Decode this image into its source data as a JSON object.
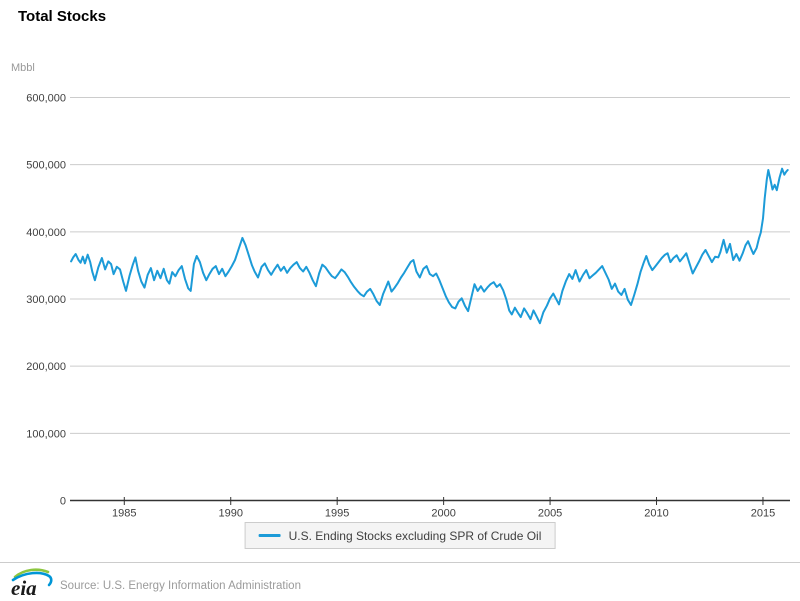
{
  "page": {
    "title": "Total Stocks"
  },
  "unit_label": "Mbbl",
  "legend": {
    "items": [
      {
        "label": "U.S. Ending Stocks excluding SPR of Crude Oil",
        "color": "#1c9bd8"
      }
    ]
  },
  "footer": {
    "logo_text": "eia",
    "source_text": "Source: U.S. Energy Information Administration"
  },
  "colors": {
    "line": "#1c9bd8",
    "gridline": "#cccccc",
    "axis": "#333333",
    "tick_label": "#404040",
    "unit_label": "#999999",
    "logo_green": "#8cc63e",
    "logo_blue": "#0096d6",
    "logo_text": "#1a1a1a"
  },
  "chart_data": {
    "type": "line",
    "title": "Total Stocks",
    "xlabel": "",
    "ylabel": "Mbbl",
    "xlim": [
      1982.45,
      2016.27
    ],
    "ylim": [
      0,
      600000
    ],
    "grid": "horizontal",
    "legend_position": "bottom-center",
    "xticks": [
      {
        "value": 1985,
        "label": "1985"
      },
      {
        "value": 1990,
        "label": "1990"
      },
      {
        "value": 1995,
        "label": "1995"
      },
      {
        "value": 2000,
        "label": "2000"
      },
      {
        "value": 2005,
        "label": "2005"
      },
      {
        "value": 2010,
        "label": "2010"
      },
      {
        "value": 2015,
        "label": "2015"
      }
    ],
    "yticks": [
      {
        "value": 0,
        "label": "0"
      },
      {
        "value": 100000,
        "label": "100,000"
      },
      {
        "value": 200000,
        "label": "200,000"
      },
      {
        "value": 300000,
        "label": "300,000"
      },
      {
        "value": 400000,
        "label": "400,000"
      },
      {
        "value": 500000,
        "label": "500,000"
      },
      {
        "value": 600000,
        "label": "600,000"
      }
    ],
    "series": [
      {
        "name": "U.S. Ending Stocks excluding SPR of Crude Oil",
        "color": "#1c9bd8",
        "points": [
          [
            1982.5,
            356000
          ],
          [
            1982.6,
            362000
          ],
          [
            1982.72,
            367000
          ],
          [
            1982.85,
            358000
          ],
          [
            1982.95,
            354000
          ],
          [
            1983.05,
            363000
          ],
          [
            1983.15,
            353000
          ],
          [
            1983.28,
            366000
          ],
          [
            1983.4,
            355000
          ],
          [
            1983.5,
            340000
          ],
          [
            1983.62,
            328000
          ],
          [
            1983.78,
            347000
          ],
          [
            1983.95,
            361000
          ],
          [
            1984.1,
            344000
          ],
          [
            1984.25,
            356000
          ],
          [
            1984.38,
            352000
          ],
          [
            1984.5,
            337000
          ],
          [
            1984.65,
            348000
          ],
          [
            1984.8,
            344000
          ],
          [
            1984.95,
            326000
          ],
          [
            1985.08,
            312000
          ],
          [
            1985.25,
            335000
          ],
          [
            1985.4,
            351000
          ],
          [
            1985.52,
            362000
          ],
          [
            1985.65,
            342000
          ],
          [
            1985.8,
            326000
          ],
          [
            1985.95,
            317000
          ],
          [
            1986.1,
            336000
          ],
          [
            1986.25,
            346000
          ],
          [
            1986.4,
            328000
          ],
          [
            1986.55,
            342000
          ],
          [
            1986.7,
            331000
          ],
          [
            1986.85,
            345000
          ],
          [
            1987.0,
            328000
          ],
          [
            1987.12,
            323000
          ],
          [
            1987.25,
            340000
          ],
          [
            1987.4,
            334000
          ],
          [
            1987.55,
            343000
          ],
          [
            1987.7,
            349000
          ],
          [
            1987.85,
            330000
          ],
          [
            1988.0,
            316000
          ],
          [
            1988.12,
            312000
          ],
          [
            1988.27,
            352000
          ],
          [
            1988.4,
            364000
          ],
          [
            1988.55,
            355000
          ],
          [
            1988.7,
            339000
          ],
          [
            1988.85,
            328000
          ],
          [
            1989.0,
            337000
          ],
          [
            1989.15,
            345000
          ],
          [
            1989.3,
            349000
          ],
          [
            1989.45,
            337000
          ],
          [
            1989.6,
            345000
          ],
          [
            1989.75,
            334000
          ],
          [
            1989.9,
            341000
          ],
          [
            1990.05,
            349000
          ],
          [
            1990.2,
            358000
          ],
          [
            1990.38,
            375000
          ],
          [
            1990.55,
            391000
          ],
          [
            1990.7,
            380000
          ],
          [
            1990.85,
            365000
          ],
          [
            1991.0,
            350000
          ],
          [
            1991.12,
            341000
          ],
          [
            1991.28,
            332000
          ],
          [
            1991.45,
            348000
          ],
          [
            1991.6,
            353000
          ],
          [
            1991.75,
            343000
          ],
          [
            1991.9,
            336000
          ],
          [
            1992.05,
            344000
          ],
          [
            1992.2,
            351000
          ],
          [
            1992.35,
            342000
          ],
          [
            1992.5,
            348000
          ],
          [
            1992.65,
            339000
          ],
          [
            1992.8,
            346000
          ],
          [
            1992.95,
            351000
          ],
          [
            1993.1,
            355000
          ],
          [
            1993.25,
            346000
          ],
          [
            1993.4,
            341000
          ],
          [
            1993.55,
            348000
          ],
          [
            1993.7,
            339000
          ],
          [
            1993.85,
            328000
          ],
          [
            1994.0,
            319000
          ],
          [
            1994.15,
            338000
          ],
          [
            1994.3,
            351000
          ],
          [
            1994.45,
            347000
          ],
          [
            1994.6,
            340000
          ],
          [
            1994.75,
            334000
          ],
          [
            1994.9,
            331000
          ],
          [
            1995.05,
            337000
          ],
          [
            1995.2,
            344000
          ],
          [
            1995.35,
            340000
          ],
          [
            1995.5,
            333000
          ],
          [
            1995.65,
            325000
          ],
          [
            1995.8,
            318000
          ],
          [
            1995.95,
            312000
          ],
          [
            1996.1,
            307000
          ],
          [
            1996.25,
            304000
          ],
          [
            1996.4,
            311000
          ],
          [
            1996.55,
            315000
          ],
          [
            1996.7,
            307000
          ],
          [
            1996.85,
            297000
          ],
          [
            1997.0,
            291000
          ],
          [
            1997.15,
            307000
          ],
          [
            1997.3,
            318000
          ],
          [
            1997.4,
            326000
          ],
          [
            1997.55,
            311000
          ],
          [
            1997.7,
            317000
          ],
          [
            1997.85,
            324000
          ],
          [
            1998.0,
            332000
          ],
          [
            1998.15,
            339000
          ],
          [
            1998.3,
            347000
          ],
          [
            1998.45,
            355000
          ],
          [
            1998.58,
            358000
          ],
          [
            1998.72,
            341000
          ],
          [
            1998.88,
            332000
          ],
          [
            1999.05,
            345000
          ],
          [
            1999.2,
            349000
          ],
          [
            1999.35,
            337000
          ],
          [
            1999.5,
            334000
          ],
          [
            1999.65,
            338000
          ],
          [
            1999.8,
            328000
          ],
          [
            1999.95,
            316000
          ],
          [
            2000.1,
            304000
          ],
          [
            2000.25,
            295000
          ],
          [
            2000.4,
            288000
          ],
          [
            2000.55,
            286000
          ],
          [
            2000.7,
            296000
          ],
          [
            2000.85,
            301000
          ],
          [
            2001.0,
            290000
          ],
          [
            2001.15,
            282000
          ],
          [
            2001.3,
            302000
          ],
          [
            2001.45,
            322000
          ],
          [
            2001.6,
            312000
          ],
          [
            2001.75,
            319000
          ],
          [
            2001.9,
            311000
          ],
          [
            2002.05,
            317000
          ],
          [
            2002.2,
            322000
          ],
          [
            2002.35,
            325000
          ],
          [
            2002.5,
            318000
          ],
          [
            2002.65,
            322000
          ],
          [
            2002.8,
            313000
          ],
          [
            2002.95,
            299000
          ],
          [
            2003.08,
            283000
          ],
          [
            2003.2,
            277000
          ],
          [
            2003.35,
            287000
          ],
          [
            2003.5,
            279000
          ],
          [
            2003.62,
            273000
          ],
          [
            2003.78,
            286000
          ],
          [
            2003.92,
            279000
          ],
          [
            2004.08,
            270000
          ],
          [
            2004.22,
            283000
          ],
          [
            2004.38,
            273000
          ],
          [
            2004.52,
            264000
          ],
          [
            2004.68,
            280000
          ],
          [
            2004.85,
            290000
          ],
          [
            2005.0,
            301000
          ],
          [
            2005.15,
            308000
          ],
          [
            2005.3,
            299000
          ],
          [
            2005.42,
            292000
          ],
          [
            2005.58,
            312000
          ],
          [
            2005.75,
            327000
          ],
          [
            2005.9,
            337000
          ],
          [
            2006.05,
            330000
          ],
          [
            2006.2,
            343000
          ],
          [
            2006.38,
            326000
          ],
          [
            2006.55,
            336000
          ],
          [
            2006.7,
            343000
          ],
          [
            2006.85,
            331000
          ],
          [
            2007.0,
            335000
          ],
          [
            2007.15,
            339000
          ],
          [
            2007.3,
            344000
          ],
          [
            2007.45,
            349000
          ],
          [
            2007.6,
            339000
          ],
          [
            2007.75,
            329000
          ],
          [
            2007.9,
            315000
          ],
          [
            2008.05,
            323000
          ],
          [
            2008.2,
            311000
          ],
          [
            2008.35,
            306000
          ],
          [
            2008.5,
            315000
          ],
          [
            2008.65,
            299000
          ],
          [
            2008.8,
            291000
          ],
          [
            2008.95,
            306000
          ],
          [
            2009.1,
            322000
          ],
          [
            2009.25,
            340000
          ],
          [
            2009.4,
            354000
          ],
          [
            2009.52,
            364000
          ],
          [
            2009.65,
            352000
          ],
          [
            2009.8,
            343000
          ],
          [
            2009.95,
            349000
          ],
          [
            2010.1,
            355000
          ],
          [
            2010.25,
            361000
          ],
          [
            2010.4,
            366000
          ],
          [
            2010.52,
            368000
          ],
          [
            2010.65,
            355000
          ],
          [
            2010.8,
            361000
          ],
          [
            2010.95,
            365000
          ],
          [
            2011.1,
            356000
          ],
          [
            2011.25,
            362000
          ],
          [
            2011.4,
            368000
          ],
          [
            2011.55,
            353000
          ],
          [
            2011.7,
            338000
          ],
          [
            2011.85,
            347000
          ],
          [
            2012.0,
            356000
          ],
          [
            2012.15,
            366000
          ],
          [
            2012.3,
            373000
          ],
          [
            2012.45,
            364000
          ],
          [
            2012.6,
            355000
          ],
          [
            2012.75,
            363000
          ],
          [
            2012.9,
            362000
          ],
          [
            2013.0,
            370000
          ],
          [
            2013.15,
            388000
          ],
          [
            2013.3,
            369000
          ],
          [
            2013.45,
            382000
          ],
          [
            2013.6,
            358000
          ],
          [
            2013.75,
            367000
          ],
          [
            2013.9,
            357000
          ],
          [
            2014.05,
            368000
          ],
          [
            2014.18,
            380000
          ],
          [
            2014.3,
            386000
          ],
          [
            2014.45,
            374000
          ],
          [
            2014.55,
            367000
          ],
          [
            2014.7,
            376000
          ],
          [
            2014.82,
            391000
          ],
          [
            2014.9,
            399000
          ],
          [
            2015.0,
            420000
          ],
          [
            2015.08,
            450000
          ],
          [
            2015.18,
            478000
          ],
          [
            2015.25,
            492000
          ],
          [
            2015.35,
            478000
          ],
          [
            2015.45,
            463000
          ],
          [
            2015.55,
            470000
          ],
          [
            2015.65,
            462000
          ],
          [
            2015.78,
            481000
          ],
          [
            2015.9,
            494000
          ],
          [
            2016.0,
            485000
          ],
          [
            2016.1,
            490000
          ],
          [
            2016.16,
            492000
          ]
        ]
      }
    ]
  }
}
